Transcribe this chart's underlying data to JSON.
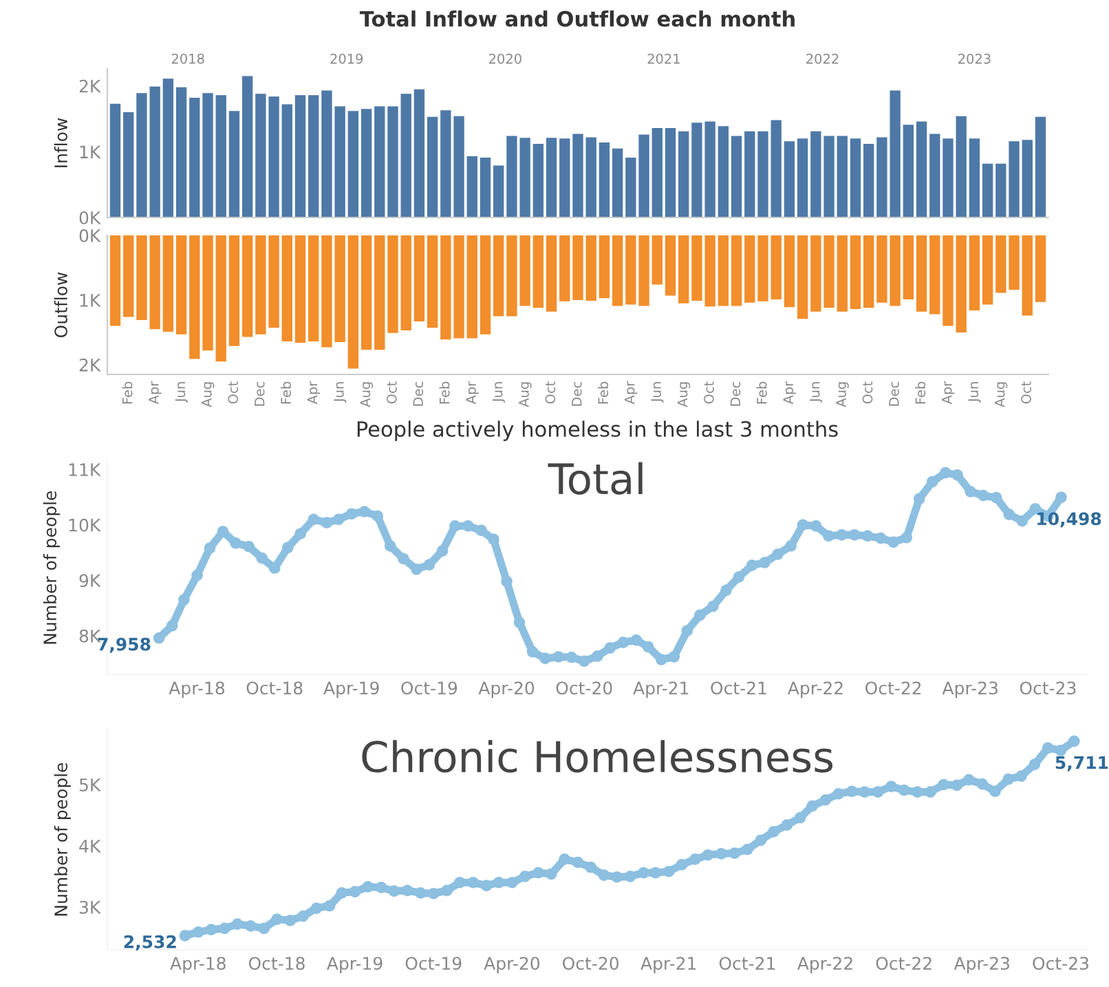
{
  "chart_data": [
    {
      "type": "bar",
      "title": "Total Inflow and Outflow each month",
      "ylabel": "Inflow",
      "annotations": [
        "2018",
        "2019",
        "2020",
        "2021",
        "2022",
        "2023"
      ],
      "series": [
        {
          "color": "#4e79a7",
          "values": [
            1730,
            1600,
            1890,
            1990,
            2110,
            1980,
            1820,
            1890,
            1860,
            1620,
            2150,
            1880,
            1840,
            1720,
            1860,
            1860,
            1930,
            1690,
            1620,
            1650,
            1690,
            1690,
            1880,
            1950,
            1530,
            1630,
            1540,
            930,
            910,
            790,
            1240,
            1210,
            1120,
            1210,
            1200,
            1270,
            1220,
            1140,
            1050,
            910,
            1260,
            1360,
            1360,
            1310,
            1440,
            1460,
            1390,
            1240,
            1310,
            1310,
            1480,
            1160,
            1200,
            1310,
            1240,
            1240,
            1200,
            1120,
            1220,
            1930,
            1410,
            1460,
            1270,
            1200,
            1540,
            1200,
            820,
            820,
            1160,
            1180,
            1530
          ]
        }
      ],
      "ylim": [
        0,
        2260
      ],
      "yticks": [
        {
          "value": 0,
          "label": "0K"
        },
        {
          "value": 1000,
          "label": "1K"
        },
        {
          "value": 2000,
          "label": "2K"
        }
      ],
      "tick_labels": "y"
    },
    {
      "type": "bar",
      "ylabel": "Outflow",
      "categories": [
        null,
        "Feb",
        null,
        "Apr",
        null,
        "Jun",
        null,
        "Aug",
        null,
        "Oct",
        null,
        "Dec",
        null,
        "Feb",
        null,
        "Apr",
        null,
        "Jun",
        null,
        "Aug",
        null,
        "Oct",
        null,
        "Dec",
        null,
        "Feb",
        null,
        "Apr",
        null,
        "Jun",
        null,
        "Aug",
        null,
        "Oct",
        null,
        "Dec",
        null,
        "Feb",
        null,
        "Apr",
        null,
        "Jun",
        null,
        "Aug",
        null,
        "Oct",
        null,
        "Dec",
        null,
        "Feb",
        null,
        "Apr",
        null,
        "Jun",
        null,
        "Aug",
        null,
        "Oct",
        null,
        "Dec",
        null,
        "Feb",
        null,
        "Apr",
        null,
        "Jun",
        null,
        "Aug",
        null,
        "Oct",
        null
      ],
      "series": [
        {
          "color": "#f28e2b",
          "values": [
            1400,
            1260,
            1310,
            1450,
            1490,
            1530,
            1910,
            1780,
            1950,
            1710,
            1570,
            1530,
            1430,
            1640,
            1660,
            1640,
            1730,
            1650,
            2060,
            1770,
            1770,
            1510,
            1470,
            1330,
            1430,
            1610,
            1590,
            1590,
            1530,
            1250,
            1250,
            1090,
            1120,
            1180,
            1020,
            1000,
            1010,
            970,
            1090,
            1070,
            1090,
            760,
            930,
            1050,
            1010,
            1100,
            1090,
            1090,
            1040,
            1020,
            990,
            1110,
            1290,
            1180,
            1120,
            1180,
            1140,
            1120,
            1040,
            1090,
            990,
            1180,
            1220,
            1400,
            1500,
            1160,
            1070,
            890,
            840,
            1240,
            1030
          ]
        }
      ],
      "ylim": [
        2150,
        0
      ],
      "yticks": [
        {
          "value": 0,
          "label": "0K"
        },
        {
          "value": 1000,
          "label": "1K"
        },
        {
          "value": 2000,
          "label": "2K"
        }
      ]
    },
    {
      "type": "line",
      "title": "People actively homeless in the last 3 months",
      "subtitle": "Total",
      "ylabel": "Number of people",
      "marker": "circle",
      "x": [
        "2018-01",
        "2018-02",
        "2018-03",
        "2018-04",
        "2018-05",
        "2018-06",
        "2018-07",
        "2018-08",
        "2018-09",
        "2018-10",
        "2018-11",
        "2018-12",
        "2019-01",
        "2019-02",
        "2019-03",
        "2019-04",
        "2019-05",
        "2019-06",
        "2019-07",
        "2019-08",
        "2019-09",
        "2019-10",
        "2019-11",
        "2019-12",
        "2020-01",
        "2020-02",
        "2020-03",
        "2020-04",
        "2020-05",
        "2020-06",
        "2020-07",
        "2020-08",
        "2020-09",
        "2020-10",
        "2020-11",
        "2020-12",
        "2021-01",
        "2021-02",
        "2021-03",
        "2021-04",
        "2021-05",
        "2021-06",
        "2021-07",
        "2021-08",
        "2021-09",
        "2021-10",
        "2021-11",
        "2021-12",
        "2022-01",
        "2022-02",
        "2022-03",
        "2022-04",
        "2022-05",
        "2022-06",
        "2022-07",
        "2022-08",
        "2022-09",
        "2022-10",
        "2022-11",
        "2022-12",
        "2023-01",
        "2023-02",
        "2023-03",
        "2023-04",
        "2023-05",
        "2023-06",
        "2023-07",
        "2023-08",
        "2023-09",
        "2023-10",
        "2023-11"
      ],
      "series": [
        {
          "color": "#8cbfe0",
          "values": [
            7958,
            8180,
            8650,
            9090,
            9580,
            9880,
            9670,
            9610,
            9400,
            9220,
            9590,
            9840,
            10100,
            10040,
            10100,
            10200,
            10240,
            10160,
            9620,
            9390,
            9200,
            9280,
            9530,
            9980,
            9980,
            9900,
            9740,
            8980,
            8240,
            7710,
            7590,
            7620,
            7610,
            7540,
            7630,
            7780,
            7880,
            7920,
            7800,
            7570,
            7620,
            8090,
            8370,
            8530,
            8820,
            9060,
            9270,
            9320,
            9470,
            9620,
            10000,
            9980,
            9800,
            9820,
            9820,
            9800,
            9760,
            9690,
            9770,
            10470,
            10780,
            10940,
            10900,
            10600,
            10530,
            10490,
            10190,
            10070,
            10290,
            10160,
            10498
          ],
          "value_labels": [
            "7,958",
            null,
            null,
            null,
            null,
            null,
            null,
            null,
            null,
            null,
            null,
            null,
            null,
            null,
            null,
            null,
            null,
            null,
            null,
            null,
            null,
            null,
            null,
            null,
            null,
            null,
            null,
            null,
            null,
            null,
            null,
            null,
            null,
            null,
            null,
            null,
            null,
            null,
            null,
            null,
            null,
            null,
            null,
            null,
            null,
            null,
            null,
            null,
            null,
            null,
            null,
            null,
            null,
            null,
            null,
            null,
            null,
            null,
            null,
            null,
            null,
            null,
            null,
            null,
            null,
            null,
            null,
            null,
            null,
            null,
            "10,498"
          ]
        }
      ],
      "xlim": [
        "2017-09",
        "2024-01"
      ],
      "xticks": [
        {
          "value": "2018-04",
          "label": "Apr-18"
        },
        {
          "value": "2018-10",
          "label": "Oct-18"
        },
        {
          "value": "2019-04",
          "label": "Apr-19"
        },
        {
          "value": "2019-10",
          "label": "Oct-19"
        },
        {
          "value": "2020-04",
          "label": "Apr-20"
        },
        {
          "value": "2020-10",
          "label": "Oct-20"
        },
        {
          "value": "2021-04",
          "label": "Apr-21"
        },
        {
          "value": "2021-10",
          "label": "Oct-21"
        },
        {
          "value": "2022-04",
          "label": "Apr-22"
        },
        {
          "value": "2022-10",
          "label": "Oct-22"
        },
        {
          "value": "2023-04",
          "label": "Apr-23"
        },
        {
          "value": "2023-10",
          "label": "Oct-23"
        }
      ],
      "ylim": [
        7300,
        11150
      ],
      "yticks": [
        {
          "value": 8000,
          "label": "8K"
        },
        {
          "value": 9000,
          "label": "9K"
        },
        {
          "value": 10000,
          "label": "10K"
        },
        {
          "value": 11000,
          "label": "11K"
        }
      ]
    },
    {
      "type": "line",
      "title": "Chronic Homelessness",
      "ylabel": "Number of people",
      "marker": "circle",
      "x": [
        "2018-03",
        "2018-04",
        "2018-05",
        "2018-06",
        "2018-07",
        "2018-08",
        "2018-09",
        "2018-10",
        "2018-11",
        "2018-12",
        "2019-01",
        "2019-02",
        "2019-03",
        "2019-04",
        "2019-05",
        "2019-06",
        "2019-07",
        "2019-08",
        "2019-09",
        "2019-10",
        "2019-11",
        "2019-12",
        "2020-01",
        "2020-02",
        "2020-03",
        "2020-04",
        "2020-05",
        "2020-06",
        "2020-07",
        "2020-08",
        "2020-09",
        "2020-10",
        "2020-11",
        "2020-12",
        "2021-01",
        "2021-02",
        "2021-03",
        "2021-04",
        "2021-05",
        "2021-06",
        "2021-07",
        "2021-08",
        "2021-09",
        "2021-10",
        "2021-11",
        "2021-12",
        "2022-01",
        "2022-02",
        "2022-03",
        "2022-04",
        "2022-05",
        "2022-06",
        "2022-07",
        "2022-08",
        "2022-09",
        "2022-10",
        "2022-11",
        "2022-12",
        "2023-01",
        "2023-02",
        "2023-03",
        "2023-04",
        "2023-05",
        "2023-06",
        "2023-07",
        "2023-08",
        "2023-09",
        "2023-10",
        "2023-11"
      ],
      "series": [
        {
          "color": "#8cbfe0",
          "values": [
            2532,
            2590,
            2630,
            2650,
            2720,
            2690,
            2650,
            2800,
            2780,
            2850,
            2980,
            3020,
            3230,
            3250,
            3330,
            3320,
            3260,
            3270,
            3230,
            3220,
            3270,
            3400,
            3400,
            3350,
            3400,
            3400,
            3500,
            3560,
            3540,
            3780,
            3730,
            3650,
            3520,
            3490,
            3500,
            3560,
            3560,
            3580,
            3690,
            3780,
            3850,
            3870,
            3880,
            3940,
            4090,
            4230,
            4340,
            4460,
            4650,
            4750,
            4850,
            4890,
            4880,
            4880,
            4970,
            4910,
            4880,
            4880,
            5000,
            4990,
            5080,
            5010,
            4890,
            5090,
            5140,
            5330,
            5600,
            5560,
            5711
          ],
          "value_labels": [
            "2,532",
            null,
            null,
            null,
            null,
            null,
            null,
            null,
            null,
            null,
            null,
            null,
            null,
            null,
            null,
            null,
            null,
            null,
            null,
            null,
            null,
            null,
            null,
            null,
            null,
            null,
            null,
            null,
            null,
            null,
            null,
            null,
            null,
            null,
            null,
            null,
            null,
            null,
            null,
            null,
            null,
            null,
            null,
            null,
            null,
            null,
            null,
            null,
            null,
            null,
            null,
            null,
            null,
            null,
            null,
            null,
            null,
            null,
            null,
            null,
            null,
            null,
            null,
            null,
            null,
            null,
            null,
            null,
            "5,711"
          ]
        }
      ],
      "xlim": [
        "2017-09",
        "2023-12"
      ],
      "xticks": [
        {
          "value": "2018-04",
          "label": "Apr-18"
        },
        {
          "value": "2018-10",
          "label": "Oct-18"
        },
        {
          "value": "2019-04",
          "label": "Apr-19"
        },
        {
          "value": "2019-10",
          "label": "Oct-19"
        },
        {
          "value": "2020-04",
          "label": "Apr-20"
        },
        {
          "value": "2020-10",
          "label": "Oct-20"
        },
        {
          "value": "2021-04",
          "label": "Apr-21"
        },
        {
          "value": "2021-10",
          "label": "Oct-21"
        },
        {
          "value": "2022-04",
          "label": "Apr-22"
        },
        {
          "value": "2022-10",
          "label": "Oct-22"
        },
        {
          "value": "2023-04",
          "label": "Apr-23"
        },
        {
          "value": "2023-10",
          "label": "Oct-23"
        }
      ],
      "ylim": [
        2300,
        5900
      ],
      "yticks": [
        {
          "value": 3000,
          "label": "3K"
        },
        {
          "value": 4000,
          "label": "4K"
        },
        {
          "value": 5000,
          "label": "5K"
        }
      ]
    }
  ]
}
